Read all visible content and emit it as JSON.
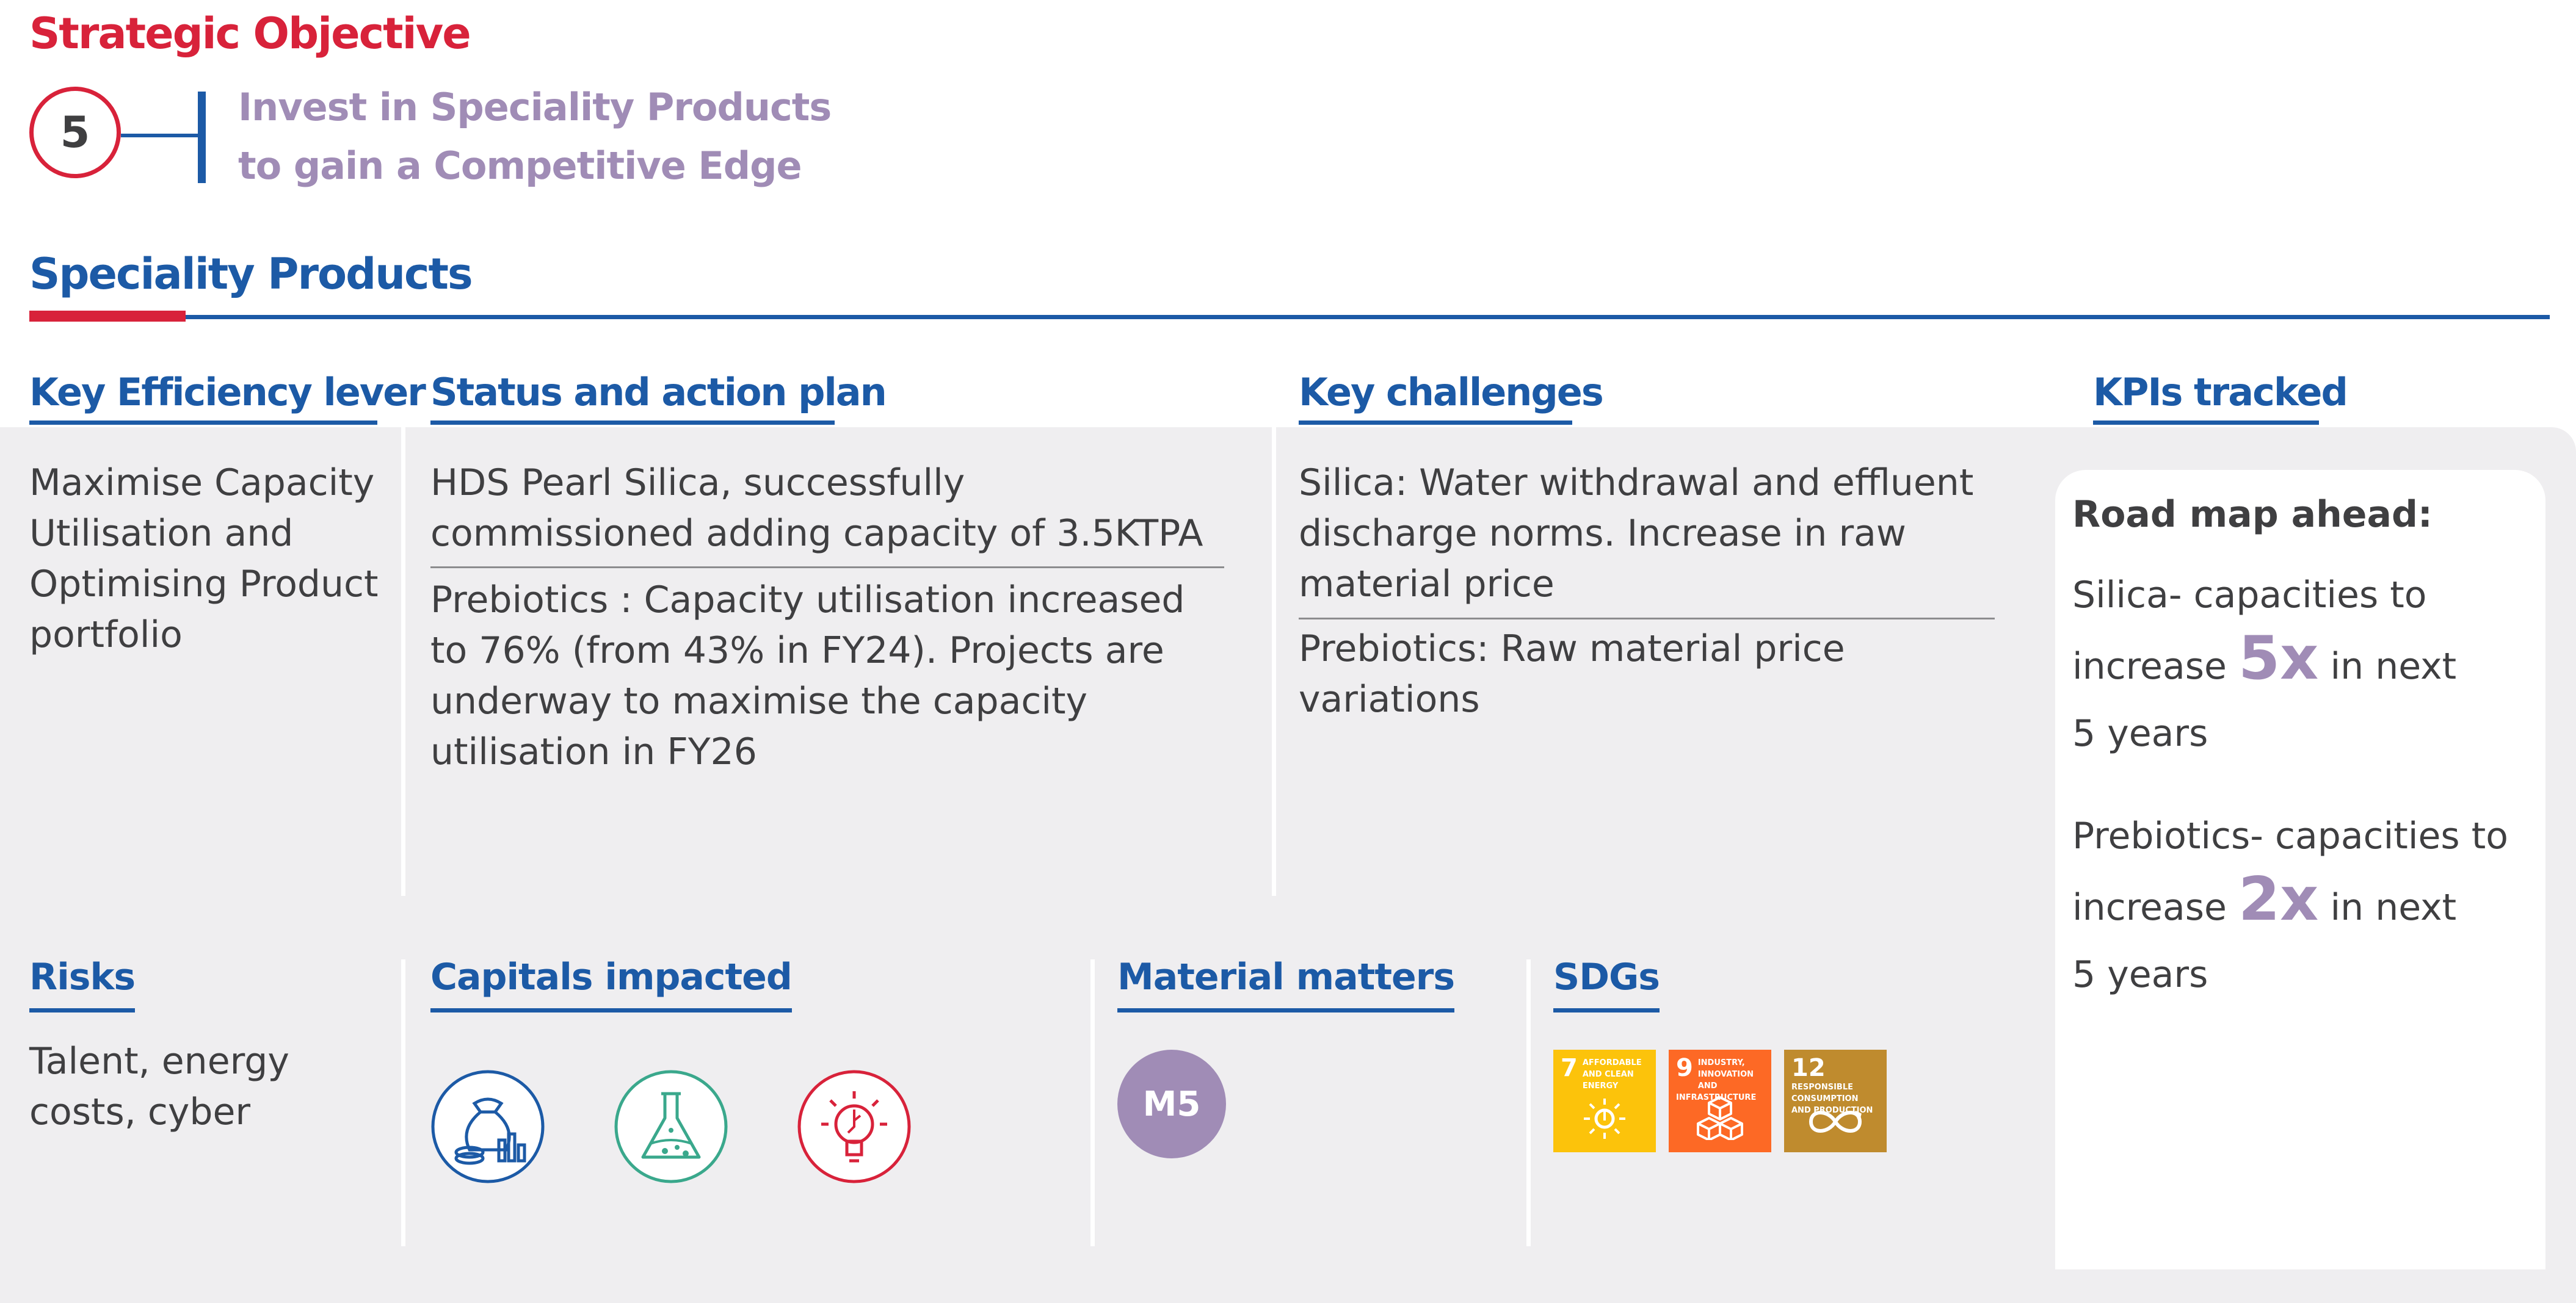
{
  "header": {
    "strategic_objective_title": "Strategic Objective",
    "objective_number": "5",
    "objective_line1": "Invest in Speciality Products",
    "objective_line2": "to gain a Competitive Edge",
    "section_title": "Speciality Products"
  },
  "columns": {
    "lever": {
      "heading": "Key Efficiency lever",
      "text": "Maximise Capacity Utilisation and Optimising Product portfolio"
    },
    "status": {
      "heading": "Status and action plan",
      "item1": "HDS Pearl Silica, successfully commissioned adding capacity of 3.5KTPA",
      "item2": "Prebiotics : Capacity utilisation increased to 76% (from 43% in FY24). Projects are underway to maximise the capacity utilisation in FY26"
    },
    "challenges": {
      "heading": "Key challenges",
      "item1": "Silica: Water withdrawal and effluent discharge norms. Increase in raw material price",
      "item2": "Prebiotics: Raw material price variations"
    },
    "kpis": {
      "heading": "KPIs tracked",
      "roadmap_heading": "Road map ahead:",
      "silica_line1": "Silica- capacities to",
      "silica_pre": "increase",
      "silica_multiplier": "5x",
      "silica_post": "in next",
      "silica_line3": "5 years",
      "prebiotics_line1": "Prebiotics- capacities to",
      "prebiotics_pre": "increase",
      "prebiotics_multiplier": "2x",
      "prebiotics_post": "in next",
      "prebiotics_line3": "5 years"
    }
  },
  "bottom": {
    "risks": {
      "heading": "Risks",
      "text": "Talent, energy costs, cyber"
    },
    "capitals": {
      "heading": "Capitals impacted",
      "icons": [
        "financial-capital-icon",
        "natural-capital-icon",
        "intellectual-capital-icon"
      ]
    },
    "material": {
      "heading": "Material matters",
      "badge": "M5"
    },
    "sdgs": {
      "heading": "SDGs",
      "goals": [
        {
          "number": "7",
          "label": "Affordable and clean energy",
          "color": "#fcc30b"
        },
        {
          "number": "9",
          "label": "Industry, innovation and infrastructure",
          "color": "#fd6925"
        },
        {
          "number": "12",
          "label": "Responsible consumption and production",
          "color": "#bf8b2e"
        }
      ]
    }
  },
  "colors": {
    "red": "#d8223a",
    "blue": "#1c5aa6",
    "purple": "#a08cb6",
    "panel_grey": "#efeef0",
    "text": "#3f3f41"
  }
}
